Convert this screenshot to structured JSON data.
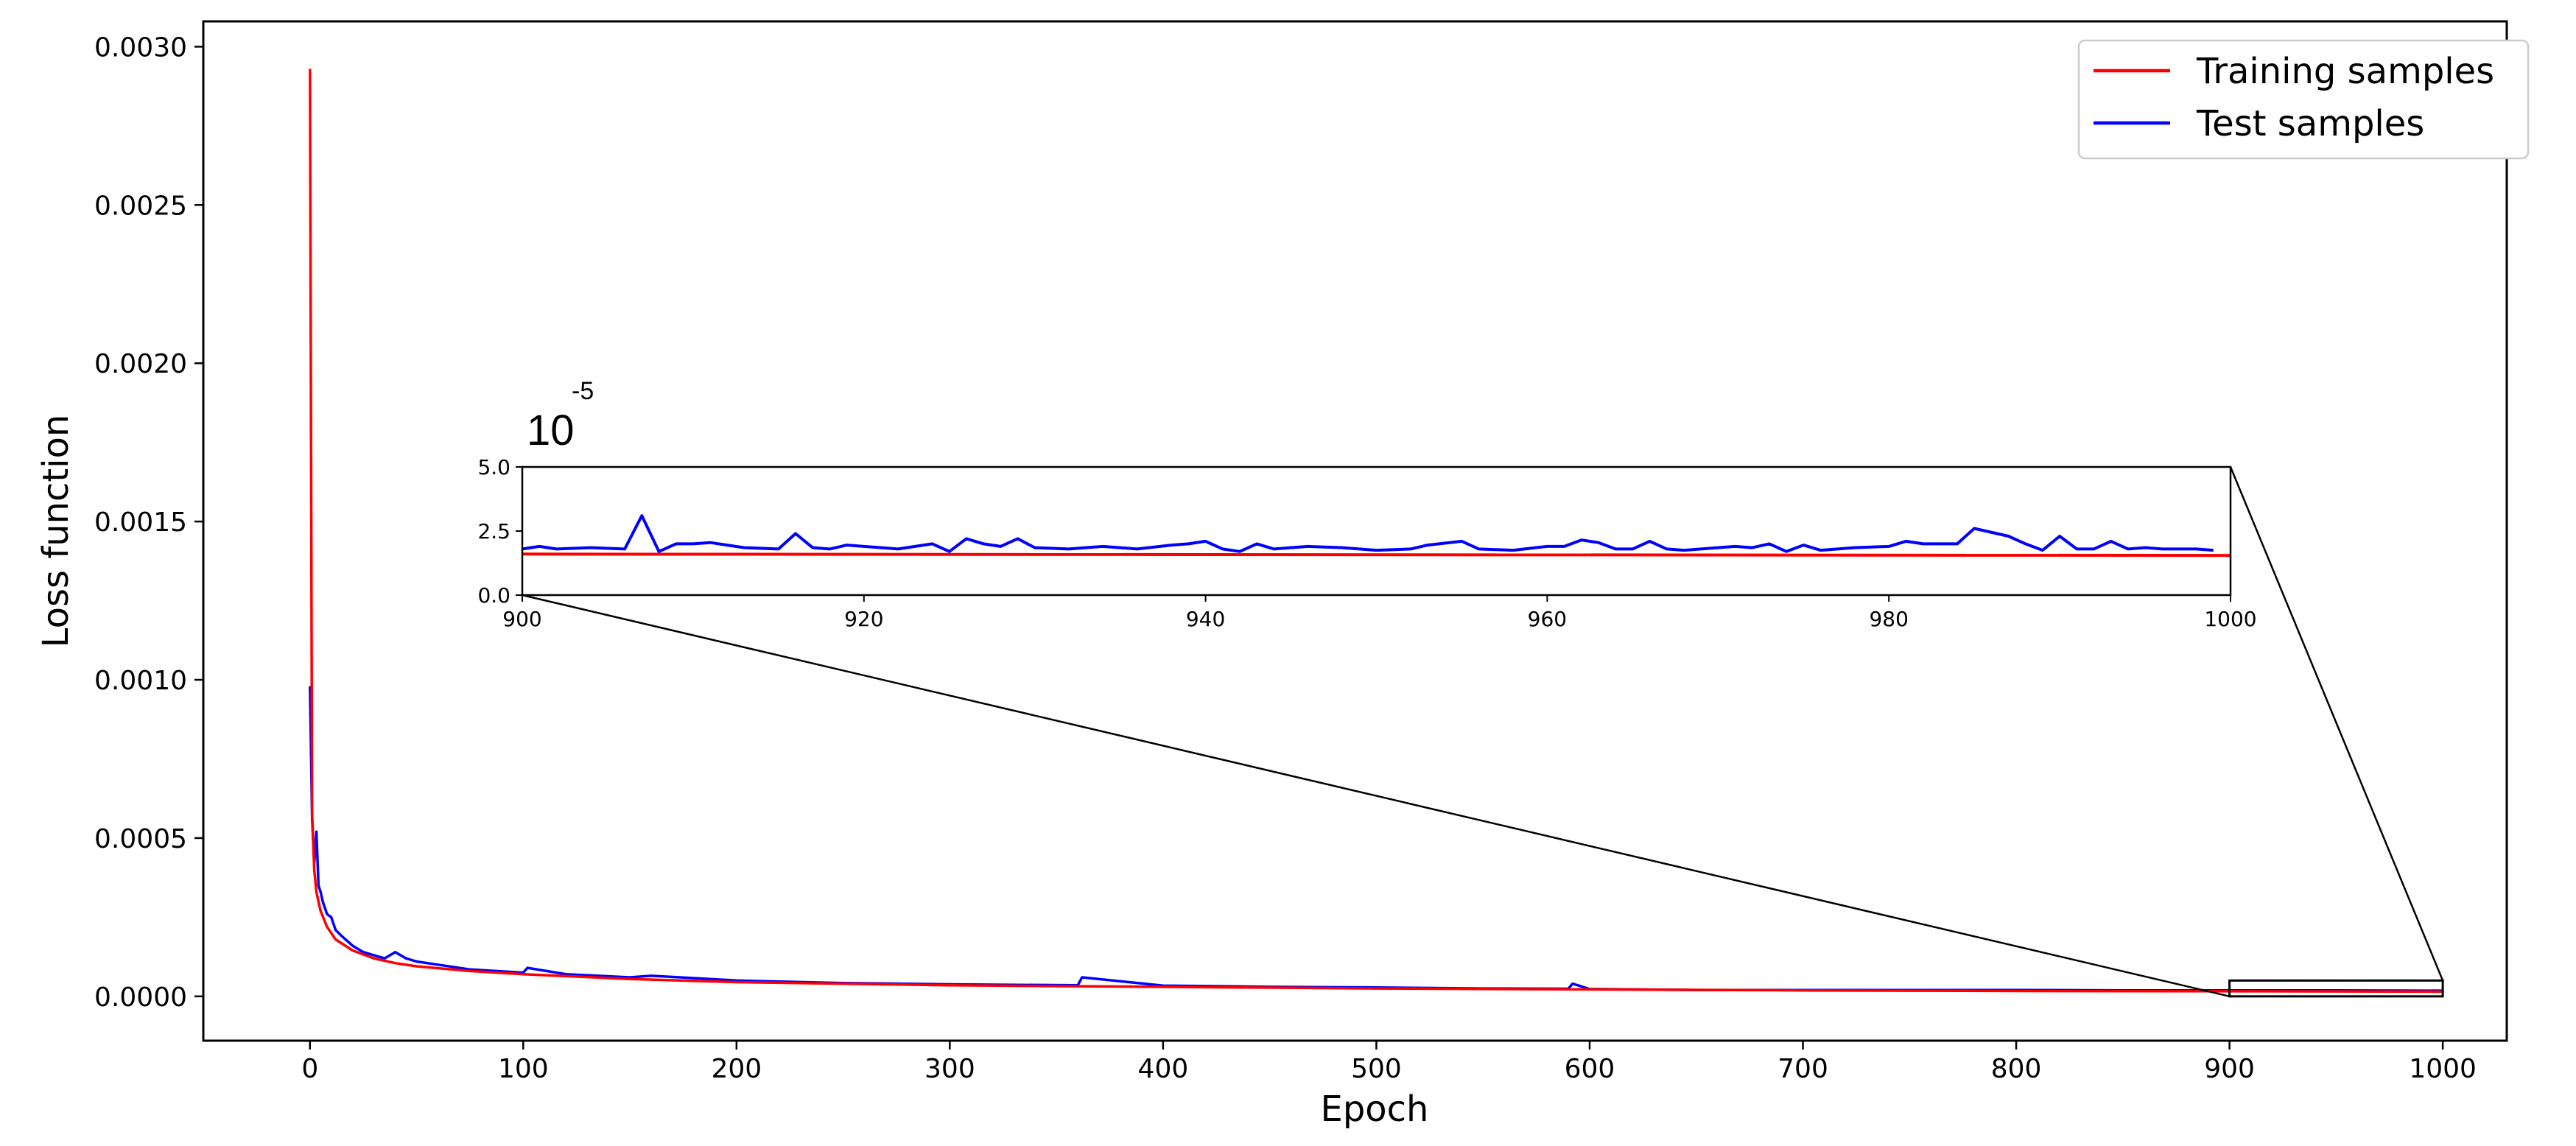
{
  "chart_data": {
    "type": "line",
    "xlabel": "Epoch",
    "ylabel": "Loss function",
    "xlim": [
      -50,
      1030
    ],
    "ylim": [
      -0.00014,
      0.00308
    ],
    "xticks": [
      0,
      100,
      200,
      300,
      400,
      500,
      600,
      700,
      800,
      900,
      1000
    ],
    "yticks": [
      0.0,
      0.0005,
      0.001,
      0.0015,
      0.002,
      0.0025,
      0.003
    ],
    "xtick_labels": [
      "0",
      "100",
      "200",
      "300",
      "400",
      "500",
      "600",
      "700",
      "800",
      "900",
      "1000"
    ],
    "ytick_labels": [
      "0.0000",
      "0.0005",
      "0.0010",
      "0.0015",
      "0.0020",
      "0.0025",
      "0.0030"
    ],
    "legend_position": "top-right",
    "series": [
      {
        "name": "Training samples",
        "color": "#ff0000",
        "x": [
          0,
          1,
          2,
          3,
          5,
          8,
          12,
          20,
          30,
          40,
          50,
          75,
          100,
          150,
          200,
          300,
          400,
          500,
          600,
          700,
          800,
          900,
          1000
        ],
        "values": [
          0.00293,
          0.00058,
          0.0004,
          0.00033,
          0.00027,
          0.00022,
          0.00018,
          0.000145,
          0.00012,
          0.000105,
          9.5e-05,
          8e-05,
          7e-05,
          5.5e-05,
          4.5e-05,
          3.5e-05,
          3e-05,
          2.5e-05,
          2.2e-05,
          1.9e-05,
          1.7e-05,
          1.6e-05,
          1.5e-05
        ]
      },
      {
        "name": "Test samples",
        "color": "#0000ff",
        "x": [
          0,
          1,
          2,
          3,
          4,
          5,
          6,
          8,
          10,
          12,
          15,
          20,
          25,
          30,
          35,
          40,
          45,
          50,
          60,
          75,
          100,
          102,
          120,
          150,
          160,
          200,
          250,
          300,
          360,
          362,
          400,
          450,
          500,
          550,
          590,
          592,
          600,
          650,
          700,
          750,
          800,
          850,
          900,
          950,
          1000
        ],
        "values": [
          0.00098,
          0.00056,
          0.00042,
          0.00052,
          0.00035,
          0.00033,
          0.0003,
          0.00026,
          0.00025,
          0.00021,
          0.00019,
          0.00016,
          0.00014,
          0.00013,
          0.00012,
          0.00014,
          0.00012,
          0.00011,
          0.0001,
          8.5e-05,
          7.5e-05,
          9e-05,
          7e-05,
          6e-05,
          6.5e-05,
          5e-05,
          4.2e-05,
          3.8e-05,
          3.5e-05,
          6e-05,
          3.4e-05,
          3e-05,
          2.8e-05,
          2.5e-05,
          2.4e-05,
          4e-05,
          2.3e-05,
          2e-05,
          2e-05,
          2e-05,
          2e-05,
          1.9e-05,
          1.9e-05,
          1.9e-05,
          1.8e-05
        ]
      }
    ],
    "inset": {
      "xlim": [
        900,
        1000
      ],
      "ylim": [
        0.0,
        5.0
      ],
      "xticks": [
        900,
        920,
        940,
        960,
        980,
        1000
      ],
      "yticks": [
        0.0,
        2.5,
        5.0
      ],
      "xtick_labels": [
        "900",
        "920",
        "940",
        "960",
        "980",
        "1000"
      ],
      "ytick_labels": [
        "0.0",
        "2.5",
        "5.0"
      ],
      "scale_base": "10",
      "scale_exponent": "-5",
      "zoom_region": {
        "xlim": [
          900,
          1000
        ],
        "ylim": [
          0.0,
          5e-05
        ]
      },
      "series": [
        {
          "name": "Training samples",
          "color": "#ff0000",
          "x": [
            900,
            1000
          ],
          "values": [
            1.6,
            1.55
          ]
        },
        {
          "name": "Test samples",
          "color": "#0000ff",
          "x": [
            900,
            901,
            902,
            904,
            906,
            907,
            908,
            909,
            910,
            911,
            913,
            915,
            916,
            917,
            918,
            919,
            920,
            922,
            924,
            925,
            926,
            927,
            928,
            929,
            930,
            932,
            934,
            936,
            938,
            939,
            940,
            941,
            942,
            943,
            944,
            946,
            948,
            950,
            952,
            953,
            955,
            956,
            958,
            960,
            961,
            962,
            963,
            964,
            965,
            966,
            967,
            968,
            970,
            971,
            972,
            973,
            974,
            975,
            976,
            978,
            980,
            981,
            982,
            984,
            985,
            987,
            988,
            989,
            990,
            991,
            992,
            993,
            994,
            995,
            996,
            997,
            998,
            999
          ],
          "values": [
            1.8,
            1.9,
            1.8,
            1.85,
            1.8,
            3.1,
            1.7,
            2.0,
            2.0,
            2.05,
            1.85,
            1.8,
            2.4,
            1.85,
            1.8,
            1.95,
            1.9,
            1.8,
            2.0,
            1.7,
            2.2,
            2.0,
            1.9,
            2.2,
            1.85,
            1.8,
            1.9,
            1.8,
            1.95,
            2.0,
            2.1,
            1.8,
            1.7,
            2.0,
            1.8,
            1.9,
            1.85,
            1.75,
            1.8,
            1.95,
            2.1,
            1.8,
            1.75,
            1.9,
            1.9,
            2.15,
            2.05,
            1.8,
            1.8,
            2.1,
            1.8,
            1.75,
            1.85,
            1.9,
            1.85,
            2.0,
            1.7,
            1.95,
            1.75,
            1.85,
            1.9,
            2.1,
            2.0,
            2.0,
            2.6,
            2.3,
            2.0,
            1.75,
            2.3,
            1.8,
            1.8,
            2.1,
            1.8,
            1.85,
            1.8,
            1.8,
            1.8,
            1.75
          ]
        }
      ]
    }
  }
}
